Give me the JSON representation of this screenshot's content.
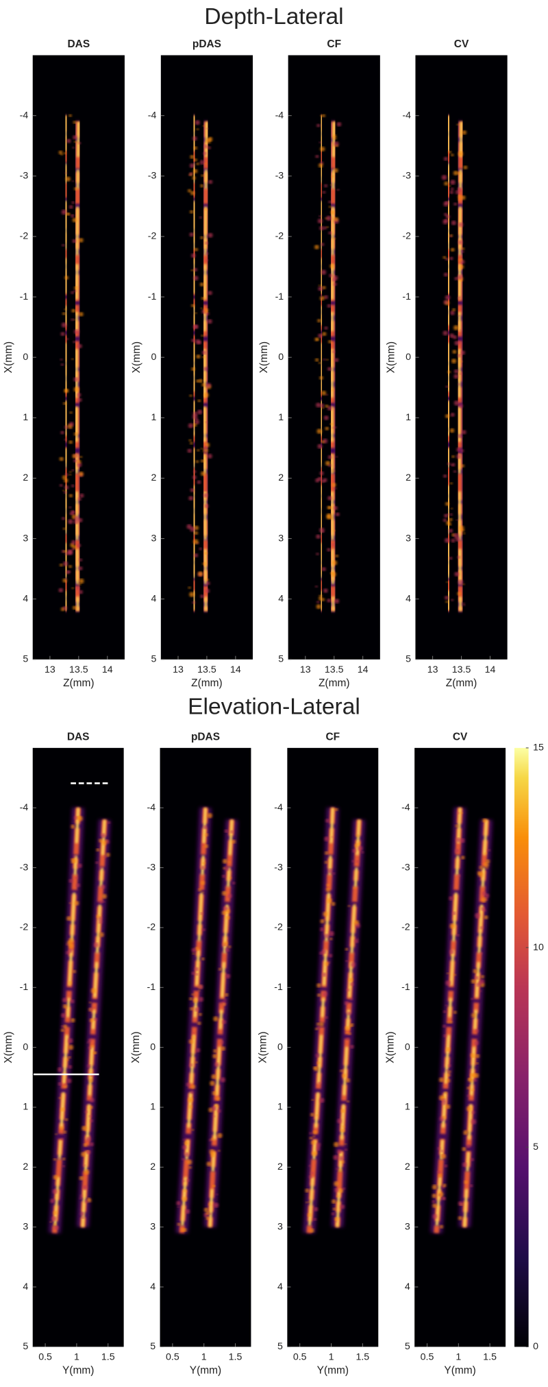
{
  "section_titles": [
    "Depth-Lateral",
    "Elevation-Lateral"
  ],
  "chart_data": [
    {
      "type": "heatmap",
      "title": "DAS",
      "xlabel": "Z(mm)",
      "ylabel": "X(mm)",
      "xlim": [
        12.7,
        14.3
      ],
      "xticks": [
        13,
        13.5,
        14
      ],
      "ylim": [
        -5,
        5
      ],
      "yticks": [
        -4,
        -3,
        -2,
        -1,
        0,
        1,
        2,
        3,
        4,
        5
      ],
      "y_inverted": true,
      "colormap": "inferno"
    },
    {
      "type": "heatmap",
      "title": "pDAS",
      "xlabel": "Z(mm)",
      "ylabel": "X(mm)",
      "xlim": [
        12.7,
        14.3
      ],
      "xticks": [
        13,
        13.5,
        14
      ],
      "ylim": [
        -5,
        5
      ],
      "yticks": [
        -4,
        -3,
        -2,
        -1,
        0,
        1,
        2,
        3,
        4,
        5
      ],
      "y_inverted": true,
      "colormap": "inferno"
    },
    {
      "type": "heatmap",
      "title": "CF",
      "xlabel": "Z(mm)",
      "ylabel": "X(mm)",
      "xlim": [
        12.7,
        14.3
      ],
      "xticks": [
        13,
        13.5,
        14
      ],
      "ylim": [
        -5,
        5
      ],
      "yticks": [
        -4,
        -3,
        -2,
        -1,
        0,
        1,
        2,
        3,
        4,
        5
      ],
      "y_inverted": true,
      "colormap": "inferno"
    },
    {
      "type": "heatmap",
      "title": "CV",
      "xlabel": "Z(mm)",
      "ylabel": "X(mm)",
      "xlim": [
        12.7,
        14.3
      ],
      "xticks": [
        13,
        13.5,
        14
      ],
      "ylim": [
        -5,
        5
      ],
      "yticks": [
        -4,
        -3,
        -2,
        -1,
        0,
        1,
        2,
        3,
        4,
        5
      ],
      "y_inverted": true,
      "colormap": "inferno"
    },
    {
      "type": "heatmap",
      "title": "DAS",
      "xlabel": "Y(mm)",
      "ylabel": "X(mm)",
      "xlim": [
        0.3,
        1.75
      ],
      "xticks": [
        0.5,
        1,
        1.5
      ],
      "ylim": [
        -5,
        5
      ],
      "yticks": [
        -4,
        -3,
        -2,
        -1,
        0,
        1,
        2,
        3,
        4,
        5
      ],
      "y_inverted": true,
      "colormap": "inferno"
    },
    {
      "type": "heatmap",
      "title": "pDAS",
      "xlabel": "Y(mm)",
      "ylabel": "X(mm)",
      "xlim": [
        0.3,
        1.75
      ],
      "xticks": [
        0.5,
        1,
        1.5
      ],
      "ylim": [
        -5,
        5
      ],
      "yticks": [
        -4,
        -3,
        -2,
        -1,
        0,
        1,
        2,
        3,
        4,
        5
      ],
      "y_inverted": true,
      "colormap": "inferno"
    },
    {
      "type": "heatmap",
      "title": "CF",
      "xlabel": "Y(mm)",
      "ylabel": "X(mm)",
      "xlim": [
        0.3,
        1.75
      ],
      "xticks": [
        0.5,
        1,
        1.5
      ],
      "ylim": [
        -5,
        5
      ],
      "yticks": [
        -4,
        -3,
        -2,
        -1,
        0,
        1,
        2,
        3,
        4,
        5
      ],
      "y_inverted": true,
      "colormap": "inferno"
    },
    {
      "type": "heatmap",
      "title": "CV",
      "xlabel": "Y(mm)",
      "ylabel": "X(mm)",
      "xlim": [
        0.3,
        1.75
      ],
      "xticks": [
        0.5,
        1,
        1.5
      ],
      "ylim": [
        -5,
        5
      ],
      "yticks": [
        -4,
        -3,
        -2,
        -1,
        0,
        1,
        2,
        3,
        4,
        5
      ],
      "y_inverted": true,
      "colormap": "inferno",
      "colorbar": {
        "zlim": [
          0,
          15
        ],
        "zticks": [
          0,
          5,
          10,
          15
        ]
      }
    }
  ]
}
